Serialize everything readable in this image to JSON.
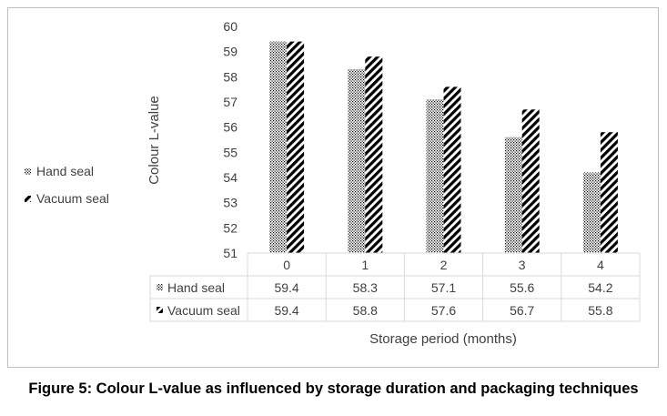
{
  "caption": "Figure 5: Colour L-value as influenced by storage duration and packaging techniques",
  "chart_data": {
    "type": "bar",
    "title": "",
    "xlabel": "Storage period (months)",
    "ylabel": "Colour L-value",
    "ylim": [
      51,
      60
    ],
    "yticks": [
      51,
      52,
      53,
      54,
      55,
      56,
      57,
      58,
      59,
      60
    ],
    "categories": [
      "0",
      "1",
      "2",
      "3",
      "4"
    ],
    "series": [
      {
        "name": "Hand seal",
        "values": [
          59.4,
          58.3,
          57.1,
          55.6,
          54.2
        ],
        "pattern": "dots"
      },
      {
        "name": "Vacuum seal",
        "values": [
          59.4,
          58.8,
          57.6,
          56.7,
          55.8
        ],
        "pattern": "diagonal"
      }
    ],
    "legend_position": "left",
    "data_table": true,
    "grid": false,
    "colors": {
      "bar_fill": "#000000",
      "bar_bg": "#ffffff",
      "axis": "#d9d9d9",
      "text": "#404040"
    }
  }
}
